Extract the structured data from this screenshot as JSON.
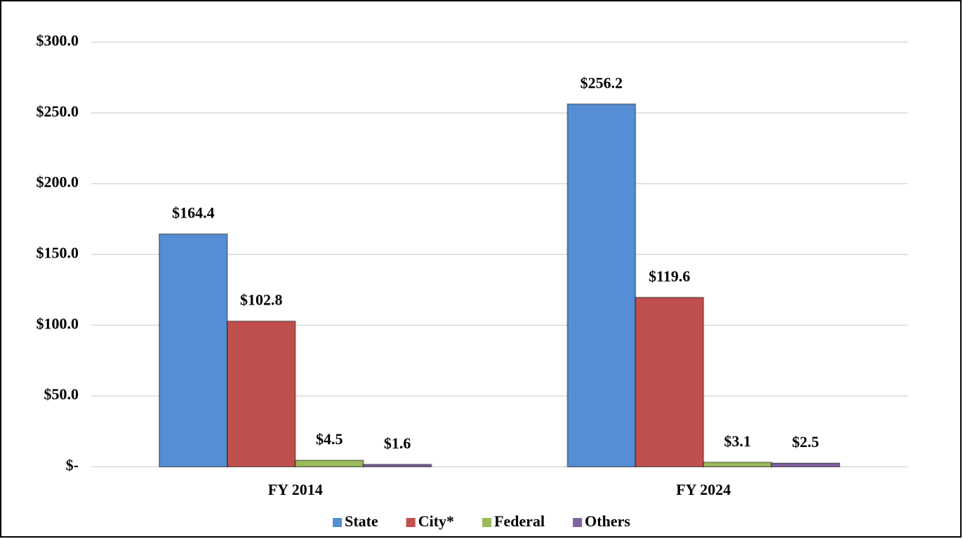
{
  "chart_data": {
    "type": "bar",
    "categories": [
      "FY 2014",
      "FY 2024"
    ],
    "series": [
      {
        "name": "State",
        "color": "#558ed5",
        "values": [
          164.4,
          256.2
        ],
        "value_labels": [
          "$164.4",
          "$256.2"
        ]
      },
      {
        "name": "City*",
        "color": "#c0504d",
        "values": [
          102.8,
          119.6
        ],
        "value_labels": [
          "$102.8",
          "$119.6"
        ]
      },
      {
        "name": "Federal",
        "color": "#9bbb59",
        "values": [
          4.5,
          3.1
        ],
        "value_labels": [
          "$4.5",
          "$3.1"
        ]
      },
      {
        "name": "Others",
        "color": "#8064a2",
        "values": [
          1.6,
          2.5
        ],
        "value_labels": [
          "$1.6",
          "$2.5"
        ]
      }
    ],
    "ylim": [
      0,
      300
    ],
    "yticks": [
      {
        "value": 0,
        "label": "$-"
      },
      {
        "value": 50,
        "label": "$50.0"
      },
      {
        "value": 100,
        "label": "$100.0"
      },
      {
        "value": 150,
        "label": "$150.0"
      },
      {
        "value": 200,
        "label": "$200.0"
      },
      {
        "value": 250,
        "label": "$250.0"
      },
      {
        "value": 300,
        "label": "$300.0"
      }
    ],
    "grid": true,
    "legend": "bottom"
  }
}
